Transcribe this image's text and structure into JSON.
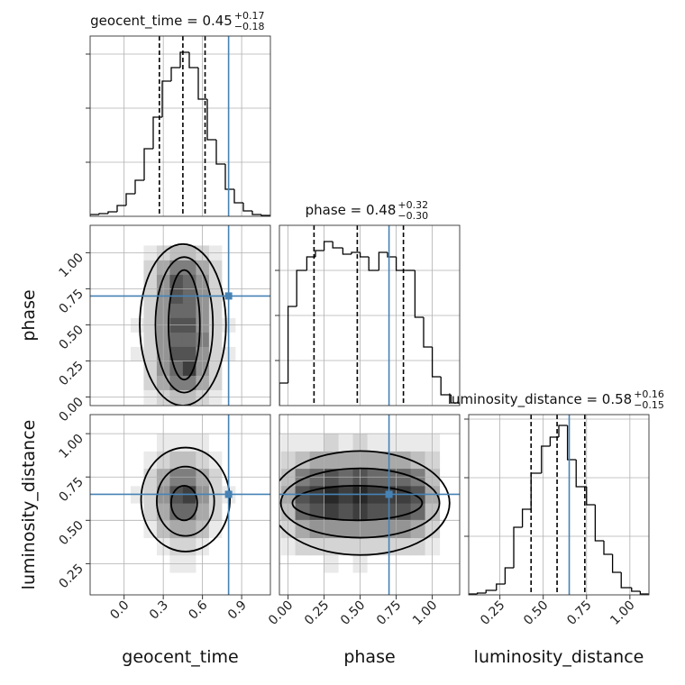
{
  "chart_data": {
    "type": "corner",
    "truth_color": "#4682b4",
    "grid": true,
    "parameters": [
      {
        "name": "geocent_time",
        "title": "geocent_time = 0.45",
        "plus": {
          "value": 0.17,
          "label": "+0.17"
        },
        "minus": {
          "value": -0.18,
          "label": "−0.18"
        },
        "quantiles": [
          0.27,
          0.45,
          0.62
        ],
        "truth": 0.8,
        "lim": [
          -0.26,
          1.12
        ],
        "ticks": [
          {
            "value": 0,
            "label": "0.0"
          },
          0.3,
          0.6,
          0.9
        ],
        "hist": {
          "bins": [
            -0.26,
            -0.191,
            -0.122,
            -0.053,
            0.016,
            0.085,
            0.154,
            0.223,
            0.292,
            0.361,
            0.43,
            0.499,
            0.568,
            0.637,
            0.706,
            0.775,
            0.844,
            0.913,
            0.982,
            1.051,
            1.12
          ],
          "counts": [
            2,
            3,
            5,
            12,
            25,
            40,
            75,
            110,
            150,
            165,
            182,
            165,
            130,
            85,
            58,
            30,
            15,
            6,
            2,
            1
          ],
          "ylim": [
            0,
            200
          ],
          "yticks": [
            60,
            120,
            180
          ]
        }
      },
      {
        "name": "phase",
        "title": "phase = 0.48",
        "plus": {
          "value": 0.32,
          "label": "+0.32"
        },
        "minus": {
          "value": -0.3,
          "label": "−0.30"
        },
        "quantiles": [
          0.18,
          0.48,
          0.8
        ],
        "truth": 0.7,
        "lim": [
          -0.06,
          1.19
        ],
        "ticks": [
          {
            "value": 0,
            "label": "0.00"
          },
          0.25,
          {
            "value": 0.5,
            "label": "0.50"
          },
          0.75,
          {
            "value": 1,
            "label": "1.00"
          }
        ],
        "hist": {
          "bins": [
            -0.06,
            0.0,
            0.06,
            0.13,
            0.19,
            0.25,
            0.31,
            0.38,
            0.44,
            0.5,
            0.56,
            0.63,
            0.69,
            0.75,
            0.81,
            0.88,
            0.94,
            1.0,
            1.06,
            1.13,
            1.19
          ],
          "counts": [
            25,
            110,
            150,
            165,
            172,
            182,
            175,
            168,
            170,
            165,
            150,
            170,
            165,
            150,
            150,
            98,
            65,
            32,
            12,
            3
          ],
          "ylim": [
            0,
            200
          ],
          "yticks": [
            50,
            100,
            150
          ]
        }
      },
      {
        "name": "luminosity_distance",
        "title": "luminosity_distance = 0.58",
        "plus": {
          "value": 0.16,
          "label": "+0.16"
        },
        "minus": {
          "value": -0.15,
          "label": "−0.15"
        },
        "quantiles": [
          0.43,
          0.58,
          0.74
        ],
        "truth": 0.65,
        "lim": [
          0.07,
          1.11
        ],
        "ticks": [
          0.25,
          {
            "value": 0.5,
            "label": "0.50"
          },
          0.75,
          {
            "value": 1,
            "label": "1.00"
          }
        ],
        "hist": {
          "bins": [
            0.07,
            0.12,
            0.17,
            0.23,
            0.28,
            0.33,
            0.38,
            0.43,
            0.49,
            0.54,
            0.59,
            0.64,
            0.69,
            0.75,
            0.8,
            0.85,
            0.9,
            0.95,
            1.01,
            1.06,
            1.11
          ],
          "counts": [
            1,
            2,
            5,
            12,
            30,
            75,
            95,
            135,
            165,
            175,
            188,
            150,
            120,
            100,
            60,
            45,
            25,
            8,
            4,
            1
          ],
          "ylim": [
            0,
            200
          ],
          "yticks": [
            65,
            130,
            195
          ]
        }
      }
    ],
    "pairs": [
      {
        "x": 0,
        "y": 1,
        "xbins": [
          0.05,
          0.15,
          0.25,
          0.35,
          0.45,
          0.55,
          0.65,
          0.75,
          0.85
        ],
        "ybins": [
          -0.05,
          0.05,
          0.15,
          0.25,
          0.35,
          0.45,
          0.55,
          0.65,
          0.75,
          0.85,
          0.95,
          1.05
        ],
        "z": [
          [
            0,
            0.1,
            0.2,
            0.3,
            0.3,
            0.2,
            0.1,
            0
          ],
          [
            0,
            0.2,
            0.4,
            0.6,
            0.6,
            0.4,
            0.2,
            0
          ],
          [
            0,
            0.2,
            0.5,
            0.7,
            0.9,
            0.5,
            0.2,
            0
          ],
          [
            0.1,
            0.2,
            0.5,
            0.8,
            0.8,
            0.5,
            0.2,
            0.1
          ],
          [
            0,
            0.2,
            0.5,
            0.7,
            0.7,
            0.6,
            0.2,
            0
          ],
          [
            0.1,
            0.2,
            0.5,
            0.8,
            0.8,
            0.5,
            0.2,
            0.1
          ],
          [
            0,
            0.2,
            0.5,
            0.7,
            0.7,
            0.5,
            0.2,
            0
          ],
          [
            0,
            0.2,
            0.5,
            0.8,
            0.7,
            0.5,
            0.2,
            0
          ],
          [
            0,
            0.2,
            0.5,
            0.8,
            0.7,
            0.5,
            0.2,
            0
          ],
          [
            0,
            0.2,
            0.4,
            0.6,
            0.6,
            0.4,
            0.2,
            0
          ],
          [
            0,
            0.1,
            0.2,
            0.3,
            0.3,
            0.2,
            0.1,
            0
          ]
        ],
        "contours": [
          {
            "cx": 0.45,
            "cy": 0.5,
            "rx": 0.33,
            "ry": 0.56
          },
          {
            "cx": 0.46,
            "cy": 0.5,
            "rx": 0.22,
            "ry": 0.47
          },
          {
            "cx": 0.46,
            "cy": 0.5,
            "rx": 0.12,
            "ry": 0.38
          }
        ]
      },
      {
        "x": 0,
        "y": 2,
        "xbins": [
          0.05,
          0.15,
          0.25,
          0.35,
          0.45,
          0.55,
          0.65,
          0.75,
          0.85
        ],
        "ybins": [
          0.2,
          0.3,
          0.4,
          0.5,
          0.6,
          0.7,
          0.8,
          0.9,
          1.0
        ],
        "z": [
          [
            0,
            0,
            0,
            0.1,
            0.1,
            0,
            0,
            0
          ],
          [
            0,
            0,
            0.1,
            0.2,
            0.2,
            0.1,
            0,
            0
          ],
          [
            0,
            0.1,
            0.3,
            0.4,
            0.4,
            0.3,
            0.1,
            0
          ],
          [
            0,
            0.2,
            0.4,
            0.7,
            0.7,
            0.4,
            0.2,
            0
          ],
          [
            0.1,
            0.2,
            0.5,
            0.8,
            0.9,
            0.5,
            0.2,
            0.1
          ],
          [
            0,
            0.2,
            0.4,
            0.6,
            0.6,
            0.4,
            0.2,
            0
          ],
          [
            0,
            0.1,
            0.2,
            0.3,
            0.3,
            0.2,
            0.1,
            0
          ],
          [
            0,
            0,
            0.1,
            0.1,
            0.1,
            0.1,
            0,
            0
          ]
        ],
        "contours": [
          {
            "cx": 0.47,
            "cy": 0.62,
            "rx": 0.34,
            "ry": 0.3
          },
          {
            "cx": 0.47,
            "cy": 0.61,
            "rx": 0.22,
            "ry": 0.2
          },
          {
            "cx": 0.46,
            "cy": 0.6,
            "rx": 0.1,
            "ry": 0.1
          }
        ]
      },
      {
        "x": 1,
        "y": 2,
        "xbins": [
          -0.05,
          0.05,
          0.15,
          0.25,
          0.35,
          0.45,
          0.55,
          0.65,
          0.75,
          0.85,
          0.95,
          1.05
        ],
        "ybins": [
          0.2,
          0.3,
          0.4,
          0.5,
          0.6,
          0.7,
          0.8,
          0.9,
          1.0
        ],
        "z": [
          [
            0,
            0,
            0,
            0.1,
            0,
            0.1,
            0,
            0,
            0,
            0,
            0
          ],
          [
            0.1,
            0.2,
            0.2,
            0.2,
            0.2,
            0.2,
            0.2,
            0.2,
            0.2,
            0.2,
            0.1
          ],
          [
            0.2,
            0.4,
            0.5,
            0.5,
            0.5,
            0.5,
            0.5,
            0.5,
            0.5,
            0.4,
            0.2
          ],
          [
            0.3,
            0.7,
            0.8,
            0.9,
            0.8,
            0.9,
            0.8,
            0.8,
            0.8,
            0.7,
            0.3
          ],
          [
            0.4,
            0.8,
            0.9,
            1,
            0.9,
            1,
            0.9,
            0.9,
            0.9,
            0.8,
            0.4
          ],
          [
            0.3,
            0.6,
            0.7,
            0.8,
            0.7,
            0.8,
            0.7,
            0.7,
            0.7,
            0.6,
            0.3
          ],
          [
            0.2,
            0.3,
            0.4,
            0.4,
            0.4,
            0.4,
            0.4,
            0.4,
            0.4,
            0.3,
            0.2
          ],
          [
            0.1,
            0.1,
            0.1,
            0.2,
            0.1,
            0.2,
            0.1,
            0.1,
            0.1,
            0.1,
            0.1
          ]
        ],
        "contours": [
          {
            "cx": 0.5,
            "cy": 0.6,
            "rx": 0.62,
            "ry": 0.3
          },
          {
            "cx": 0.5,
            "cy": 0.6,
            "rx": 0.55,
            "ry": 0.2
          },
          {
            "cx": 0.48,
            "cy": 0.6,
            "rx": 0.45,
            "ry": 0.1
          }
        ]
      }
    ]
  }
}
